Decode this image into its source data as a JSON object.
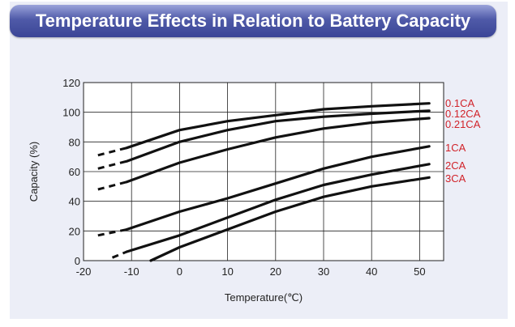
{
  "chart_data": {
    "type": "line",
    "title": "Temperature Effects in Relation to Battery Capacity",
    "xlabel": "Temperature(℃)",
    "ylabel": "Capacity (%)",
    "xlim": [
      -20,
      55
    ],
    "ylim": [
      0,
      120
    ],
    "xticks": [
      -20,
      -10,
      0,
      10,
      20,
      30,
      40,
      50
    ],
    "yticks": [
      0,
      20,
      40,
      60,
      80,
      100,
      120
    ],
    "grid": true,
    "legend": "right, labels at line ends",
    "series": [
      {
        "name": "0.1CA",
        "dashed": [
          [
            -17,
            71
          ],
          [
            -11,
            76
          ]
        ],
        "solid": [
          [
            -11,
            76
          ],
          [
            0,
            88
          ],
          [
            10,
            94
          ],
          [
            20,
            98
          ],
          [
            30,
            102
          ],
          [
            40,
            104
          ],
          [
            52,
            106
          ]
        ]
      },
      {
        "name": "0.12CA",
        "dashed": [
          [
            -17,
            62
          ],
          [
            -11,
            67
          ]
        ],
        "solid": [
          [
            -11,
            67
          ],
          [
            0,
            80
          ],
          [
            10,
            88
          ],
          [
            20,
            94
          ],
          [
            30,
            97
          ],
          [
            40,
            99
          ],
          [
            52,
            101
          ]
        ]
      },
      {
        "name": "0.21CA",
        "dashed": [
          [
            -17,
            48
          ],
          [
            -11,
            53
          ]
        ],
        "solid": [
          [
            -11,
            53
          ],
          [
            0,
            66
          ],
          [
            10,
            75
          ],
          [
            20,
            83
          ],
          [
            30,
            89
          ],
          [
            40,
            93
          ],
          [
            52,
            96
          ]
        ]
      },
      {
        "name": "1CA",
        "dashed": [
          [
            -17,
            17
          ],
          [
            -11,
            21
          ]
        ],
        "solid": [
          [
            -11,
            21
          ],
          [
            0,
            33
          ],
          [
            10,
            42
          ],
          [
            20,
            52
          ],
          [
            30,
            62
          ],
          [
            40,
            70
          ],
          [
            52,
            77
          ]
        ]
      },
      {
        "name": "2CA",
        "dashed": [
          [
            -14,
            2
          ],
          [
            -11,
            6
          ]
        ],
        "solid": [
          [
            -11,
            6
          ],
          [
            0,
            17
          ],
          [
            10,
            29
          ],
          [
            20,
            41
          ],
          [
            30,
            51
          ],
          [
            40,
            58
          ],
          [
            52,
            65
          ]
        ]
      },
      {
        "name": "3CA",
        "dashed": [],
        "solid": [
          [
            -6,
            0
          ],
          [
            0,
            9
          ],
          [
            10,
            21
          ],
          [
            20,
            33
          ],
          [
            30,
            43
          ],
          [
            40,
            50
          ],
          [
            52,
            56
          ]
        ]
      }
    ]
  },
  "colors": {
    "line": "#111111",
    "label": "#d1232a",
    "plot_bg": "#ffffff",
    "panel_bg": "#eceef7",
    "title_bg": "#4f5aa8"
  }
}
